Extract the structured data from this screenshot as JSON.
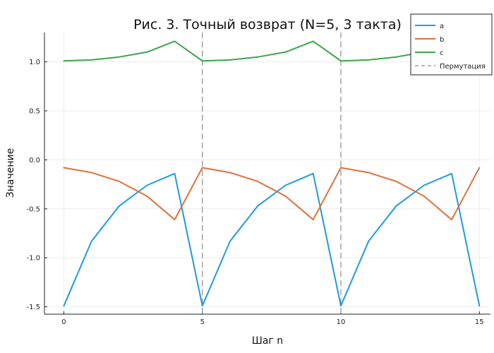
{
  "chart_data": {
    "type": "line",
    "title": "Рис. 3. Точный возврат (N=5, 3 такта)",
    "xlabel": "Шаг n",
    "ylabel": "Значение",
    "xlim": [
      -0.7,
      15.4
    ],
    "ylim": [
      -1.575,
      1.3
    ],
    "x_ticks": [
      0,
      5,
      10,
      15
    ],
    "x_tick_labels": [
      "0",
      "5",
      "10",
      "15"
    ],
    "y_ticks": [
      -1.5,
      -1.0,
      -0.5,
      0.0,
      0.5,
      1.0
    ],
    "y_tick_labels": [
      "-1.5",
      "-1.0",
      "-0.5",
      "0.0",
      "0.5",
      "1.0"
    ],
    "grid": true,
    "legend_position": "top-right",
    "x": [
      0,
      1,
      2,
      3,
      4,
      5,
      6,
      7,
      8,
      9,
      10,
      11,
      12,
      13,
      14,
      15
    ],
    "series": [
      {
        "name": "a",
        "color": "#1f9bde",
        "values": [
          -1.49,
          -0.83,
          -0.47,
          -0.26,
          -0.14,
          -1.49,
          -0.83,
          -0.47,
          -0.26,
          -0.14,
          -1.49,
          -0.83,
          -0.47,
          -0.26,
          -0.14,
          -1.49
        ]
      },
      {
        "name": "b",
        "color": "#e0703b",
        "values": [
          -0.08,
          -0.13,
          -0.22,
          -0.37,
          -0.61,
          -0.08,
          -0.13,
          -0.22,
          -0.37,
          -0.61,
          -0.08,
          -0.13,
          -0.22,
          -0.37,
          -0.61,
          -0.08
        ]
      },
      {
        "name": "c",
        "color": "#3ca64b",
        "values": [
          1.01,
          1.02,
          1.05,
          1.1,
          1.21,
          1.01,
          1.02,
          1.05,
          1.1,
          1.21,
          1.01,
          1.02,
          1.05,
          1.1,
          1.21,
          1.01
        ]
      }
    ],
    "vlines": {
      "name": "Пермутация",
      "color": "#8c8c8c",
      "x": [
        5,
        10
      ]
    }
  }
}
